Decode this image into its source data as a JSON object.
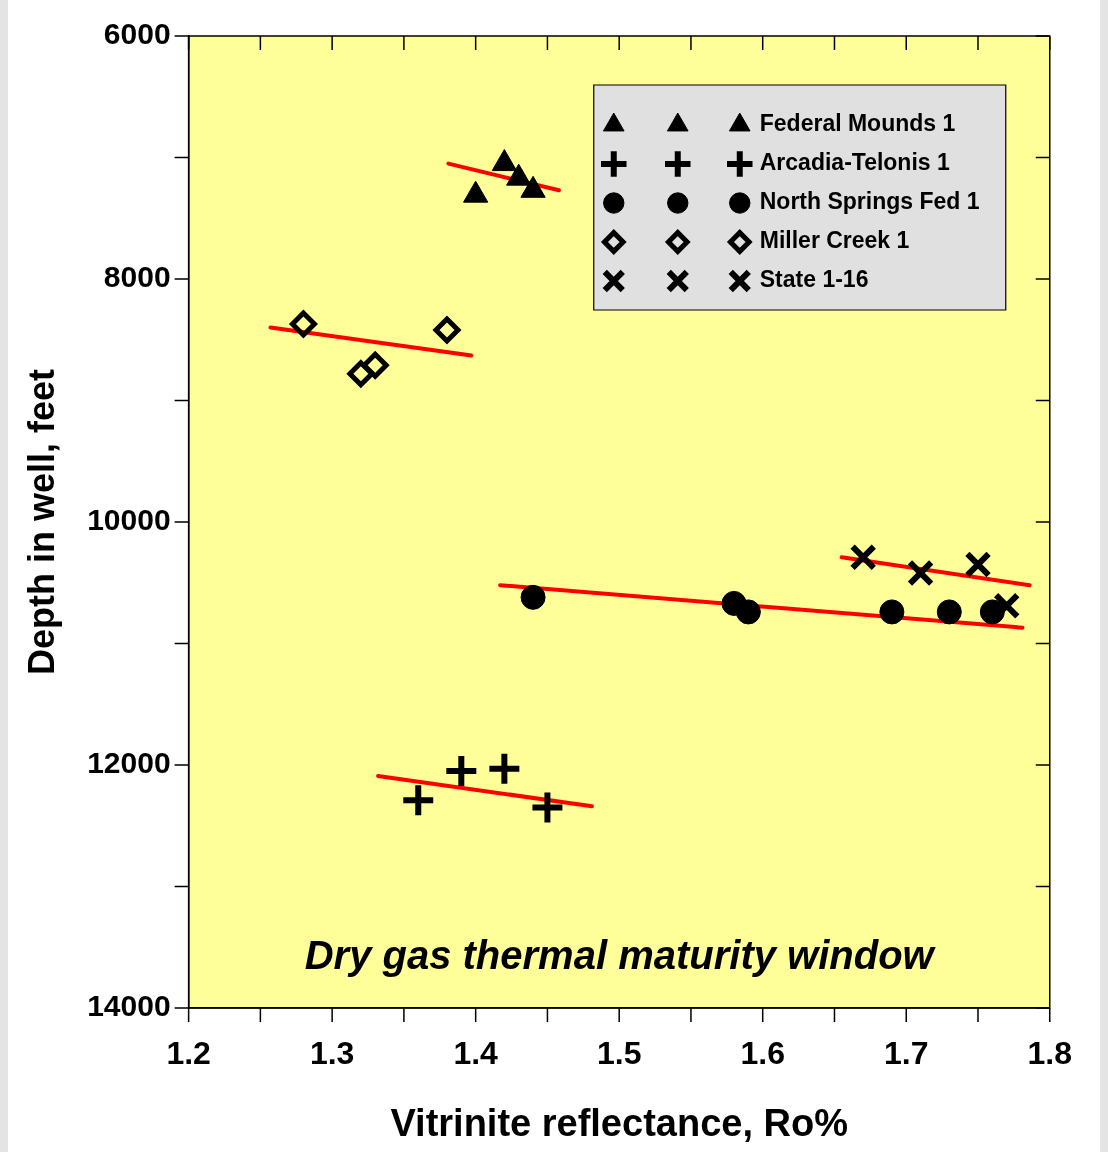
{
  "chart_data": {
    "type": "scatter",
    "xlabel": "Vitrinite reflectance, Ro%",
    "ylabel": "Depth in well, feet",
    "xlim": [
      1.2,
      1.8
    ],
    "xticks": [
      1.2,
      {
        "value": 1.25,
        "label": null
      },
      1.3,
      {
        "value": 1.35,
        "label": null
      },
      1.4,
      {
        "value": 1.45,
        "label": null
      },
      1.5,
      {
        "value": 1.55,
        "label": null
      },
      1.6,
      {
        "value": 1.65,
        "label": null
      },
      1.7,
      {
        "value": 1.75,
        "label": null
      },
      1.8
    ],
    "ylim": [
      14000,
      6000
    ],
    "yticks": [
      6000,
      {
        "value": 7000,
        "label": null
      },
      8000,
      {
        "value": 9000,
        "label": null
      },
      10000,
      {
        "value": 11000,
        "label": null
      },
      12000,
      {
        "value": 13000,
        "label": null
      },
      14000
    ],
    "grid": false,
    "legend": "top right",
    "annotations": [
      "Dry gas thermal maturity window"
    ],
    "series": [
      {
        "name": "Federal Mounds 1",
        "type": "scatter",
        "marker": "triangle",
        "color": "#000000",
        "x": [
          1.4,
          1.42,
          1.43,
          1.44
        ],
        "values": [
          7310,
          7050,
          7170,
          7270
        ]
      },
      {
        "name": "Arcadia-Telonis 1",
        "type": "scatter",
        "marker": "cross",
        "color": "#000000",
        "x": [
          1.36,
          1.39,
          1.42,
          1.45
        ],
        "values": [
          12290,
          12050,
          12030,
          12350
        ]
      },
      {
        "name": "North Springs Fed 1",
        "type": "scatter",
        "marker": "circle",
        "color": "#000000",
        "x": [
          1.44,
          1.58,
          1.59,
          1.69,
          1.73,
          1.76
        ],
        "values": [
          10620,
          10670,
          10740,
          10740,
          10740,
          10740
        ]
      },
      {
        "name": "Miller Creek 1",
        "type": "scatter",
        "marker": "diamond",
        "color": "#000000",
        "x": [
          1.28,
          1.32,
          1.33,
          1.38
        ],
        "values": [
          8370,
          8780,
          8710,
          8420
        ]
      },
      {
        "name": "State 1-16",
        "type": "scatter",
        "marker": "x",
        "color": "#000000",
        "x": [
          1.67,
          1.71,
          1.75,
          1.77
        ],
        "values": [
          10290,
          10420,
          10350,
          10690
        ]
      },
      {
        "type": "line",
        "marker": "none",
        "color": "#ff0000",
        "x": [
          1.381,
          1.458
        ],
        "values": [
          7050,
          7270
        ]
      },
      {
        "type": "line",
        "marker": "none",
        "color": "#ff0000",
        "x": [
          1.257,
          1.397
        ],
        "values": [
          8400,
          8630
        ]
      },
      {
        "type": "line",
        "marker": "none",
        "color": "#ff0000",
        "x": [
          1.332,
          1.481
        ],
        "values": [
          12090,
          12340
        ]
      },
      {
        "type": "line",
        "marker": "none",
        "color": "#ff0000",
        "x": [
          1.417,
          1.781
        ],
        "values": [
          10520,
          10870
        ]
      },
      {
        "type": "line",
        "marker": "none",
        "color": "#ff0000",
        "x": [
          1.655,
          1.786
        ],
        "values": [
          10290,
          10520
        ]
      }
    ]
  }
}
